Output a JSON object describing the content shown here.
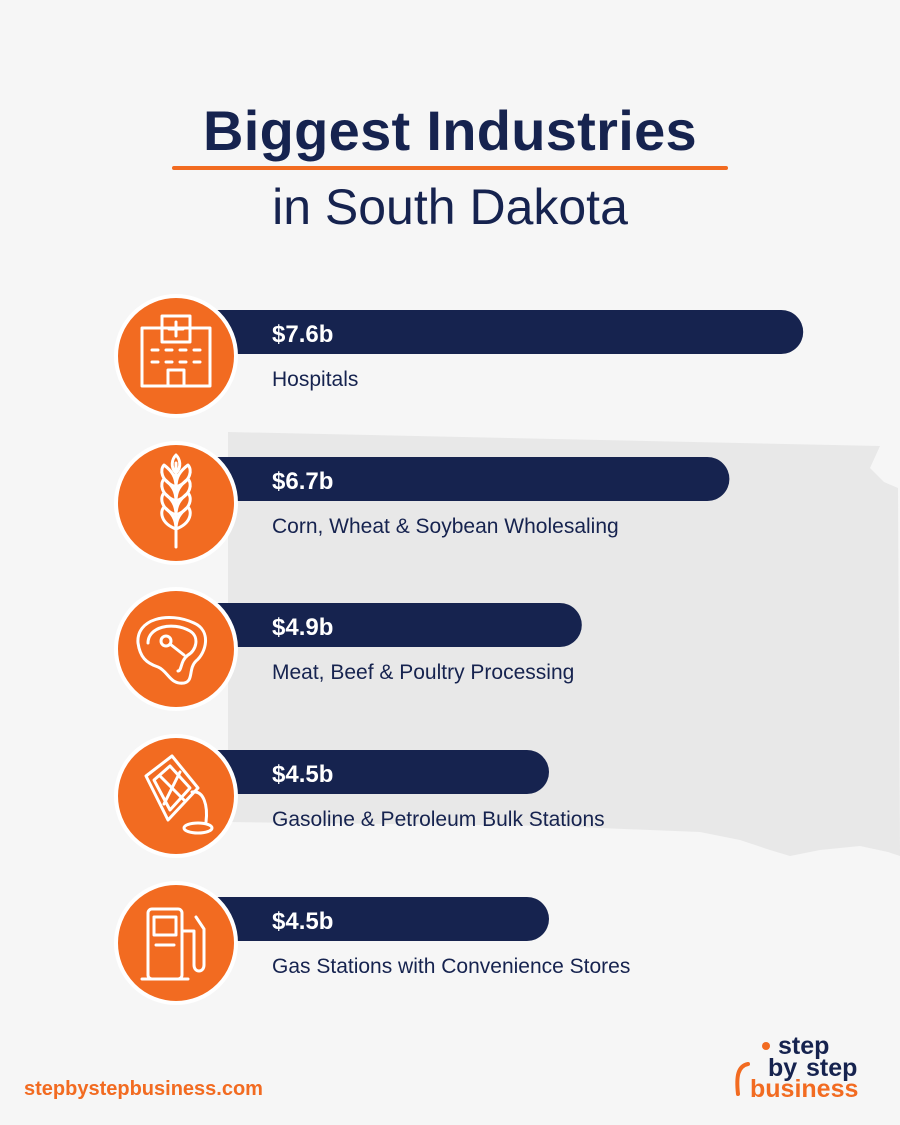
{
  "title": {
    "line1": "Biggest Industries",
    "line2": "in South Dakota"
  },
  "chart_data": {
    "type": "bar",
    "orientation": "horizontal",
    "unit": "$ billions",
    "categories": [
      "Hospitals",
      "Corn, Wheat & Soybean Wholesaling",
      "Meat, Beef & Poultry Processing",
      "Gasoline & Petroleum Bulk Stations",
      "Gas Stations with Convenience Stores"
    ],
    "values": [
      7.6,
      6.7,
      4.9,
      4.5,
      4.5
    ],
    "value_labels": [
      "$7.6b",
      "$6.7b",
      "$4.9b",
      "$4.5b",
      "$4.5b"
    ],
    "icons": [
      "hospital-icon",
      "wheat-icon",
      "steak-icon",
      "fuel-can-icon",
      "gas-pump-icon"
    ],
    "colors": {
      "bar": "#16234f",
      "icon_bg": "#f26b21",
      "label": "#16234f"
    }
  },
  "footer": {
    "url": "stepbystepbusiness.com"
  },
  "logo": {
    "word1": "step",
    "word2": "by",
    "word3": "step",
    "word4": "business"
  },
  "colors": {
    "background": "#f6f6f6",
    "navy": "#16234f",
    "orange": "#f26b21",
    "map": "#e8e8e8"
  }
}
